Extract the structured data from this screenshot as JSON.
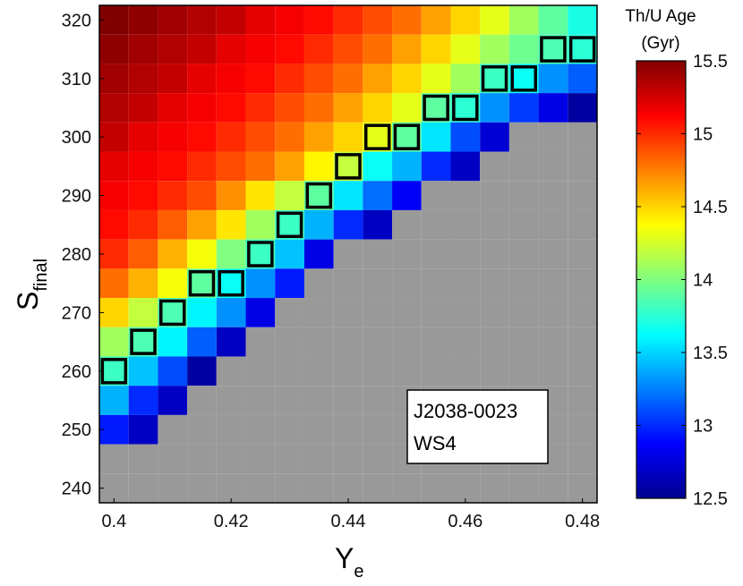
{
  "chart_data": {
    "type": "heatmap",
    "title": "",
    "xlabel": {
      "main": "Y",
      "sub": "e"
    },
    "ylabel": {
      "main": "S",
      "sub": "final"
    },
    "x": [
      0.4,
      0.405,
      0.41,
      0.415,
      0.42,
      0.425,
      0.43,
      0.435,
      0.44,
      0.445,
      0.45,
      0.455,
      0.46,
      0.465,
      0.47,
      0.475,
      0.48
    ],
    "y": [
      320,
      315,
      310,
      305,
      300,
      295,
      290,
      285,
      280,
      275,
      270,
      265,
      260,
      255,
      250,
      245,
      240
    ],
    "xlim": [
      0.3975,
      0.4825
    ],
    "ylim": [
      237.5,
      322.5
    ],
    "xticks": [
      0.4,
      0.42,
      0.44,
      0.46,
      0.48
    ],
    "xtick_labels": [
      "0.4",
      "0.42",
      "0.44",
      "0.46",
      "0.48"
    ],
    "yticks": [
      240,
      250,
      260,
      270,
      280,
      290,
      300,
      310,
      320
    ],
    "ytick_labels": [
      "240",
      "250",
      "260",
      "270",
      "280",
      "290",
      "300",
      "310",
      "320"
    ],
    "z_unit": "Gyr",
    "z_missing_note": "null = no solution (gray cell)",
    "z": [
      [
        15.5,
        15.45,
        15.4,
        15.35,
        15.3,
        15.2,
        15.15,
        15.1,
        15.0,
        14.9,
        14.8,
        14.65,
        14.5,
        14.3,
        14.1,
        13.9,
        13.7
      ],
      [
        15.45,
        15.4,
        15.35,
        15.3,
        15.2,
        15.15,
        15.1,
        15.0,
        14.9,
        14.8,
        14.65,
        14.5,
        14.3,
        14.1,
        13.95,
        13.85,
        13.75
      ],
      [
        15.4,
        15.35,
        15.3,
        15.2,
        15.15,
        15.1,
        15.0,
        14.9,
        14.8,
        14.65,
        14.5,
        14.3,
        14.1,
        13.8,
        13.65,
        13.3,
        13.15
      ],
      [
        15.35,
        15.3,
        15.2,
        15.15,
        15.1,
        15.0,
        14.9,
        14.8,
        14.65,
        14.5,
        14.3,
        13.9,
        13.75,
        13.3,
        13.05,
        12.8,
        12.6
      ],
      [
        15.3,
        15.2,
        15.15,
        15.1,
        15.0,
        14.9,
        14.8,
        14.65,
        14.5,
        14.3,
        13.9,
        13.55,
        13.1,
        12.75,
        null,
        null,
        null
      ],
      [
        15.2,
        15.15,
        15.1,
        15.0,
        14.9,
        14.8,
        14.65,
        14.4,
        14.2,
        13.65,
        13.4,
        13.0,
        12.7,
        null,
        null,
        null,
        null
      ],
      [
        15.15,
        15.1,
        15.0,
        14.9,
        14.7,
        14.45,
        14.2,
        13.9,
        13.55,
        13.2,
        12.85,
        null,
        null,
        null,
        null,
        null,
        null
      ],
      [
        15.1,
        15.0,
        14.85,
        14.65,
        14.45,
        14.1,
        13.8,
        13.4,
        13.0,
        12.7,
        null,
        null,
        null,
        null,
        null,
        null,
        null
      ],
      [
        15.0,
        14.85,
        14.6,
        14.35,
        14.0,
        13.8,
        13.45,
        12.8,
        null,
        null,
        null,
        null,
        null,
        null,
        null,
        null,
        null
      ],
      [
        14.8,
        14.6,
        14.35,
        13.9,
        13.65,
        13.3,
        12.95,
        null,
        null,
        null,
        null,
        null,
        null,
        null,
        null,
        null,
        null
      ],
      [
        14.5,
        14.2,
        13.85,
        13.6,
        13.3,
        12.8,
        null,
        null,
        null,
        null,
        null,
        null,
        null,
        null,
        null,
        null,
        null
      ],
      [
        14.1,
        13.85,
        13.6,
        13.15,
        12.7,
        null,
        null,
        null,
        null,
        null,
        null,
        null,
        null,
        null,
        null,
        null,
        null
      ],
      [
        13.8,
        13.45,
        13.1,
        12.6,
        null,
        null,
        null,
        null,
        null,
        null,
        null,
        null,
        null,
        null,
        null,
        null,
        null
      ],
      [
        13.4,
        13.0,
        12.7,
        null,
        null,
        null,
        null,
        null,
        null,
        null,
        null,
        null,
        null,
        null,
        null,
        null,
        null
      ],
      [
        12.95,
        12.7,
        null,
        null,
        null,
        null,
        null,
        null,
        null,
        null,
        null,
        null,
        null,
        null,
        null,
        null,
        null
      ],
      [
        null,
        null,
        null,
        null,
        null,
        null,
        null,
        null,
        null,
        null,
        null,
        null,
        null,
        null,
        null,
        null,
        null
      ],
      [
        null,
        null,
        null,
        null,
        null,
        null,
        null,
        null,
        null,
        null,
        null,
        null,
        null,
        null,
        null,
        null,
        null
      ]
    ],
    "highlighted_cells": [
      {
        "x": 0.4,
        "y": 260
      },
      {
        "x": 0.405,
        "y": 265
      },
      {
        "x": 0.41,
        "y": 270
      },
      {
        "x": 0.415,
        "y": 275
      },
      {
        "x": 0.42,
        "y": 275
      },
      {
        "x": 0.425,
        "y": 280
      },
      {
        "x": 0.43,
        "y": 285
      },
      {
        "x": 0.435,
        "y": 290
      },
      {
        "x": 0.44,
        "y": 295
      },
      {
        "x": 0.445,
        "y": 300
      },
      {
        "x": 0.45,
        "y": 300
      },
      {
        "x": 0.455,
        "y": 305
      },
      {
        "x": 0.46,
        "y": 305
      },
      {
        "x": 0.465,
        "y": 310
      },
      {
        "x": 0.47,
        "y": 310
      },
      {
        "x": 0.475,
        "y": 315
      },
      {
        "x": 0.48,
        "y": 315
      }
    ],
    "colorbar": {
      "title_line1": "Th/U Age",
      "title_line2": "(Gyr)",
      "range": [
        12.5,
        15.5
      ],
      "ticks": [
        12.5,
        13,
        13.5,
        14,
        14.5,
        15,
        15.5
      ],
      "tick_labels": [
        "12.5",
        "13",
        "13.5",
        "14",
        "14.5",
        "15",
        "15.5"
      ],
      "colormap": "jet"
    },
    "annotation": {
      "line1": "J2038-0023",
      "line2": "WS4",
      "placement": "bottom-right"
    },
    "missing_color": "#999999",
    "highlight_color": "#000000"
  }
}
